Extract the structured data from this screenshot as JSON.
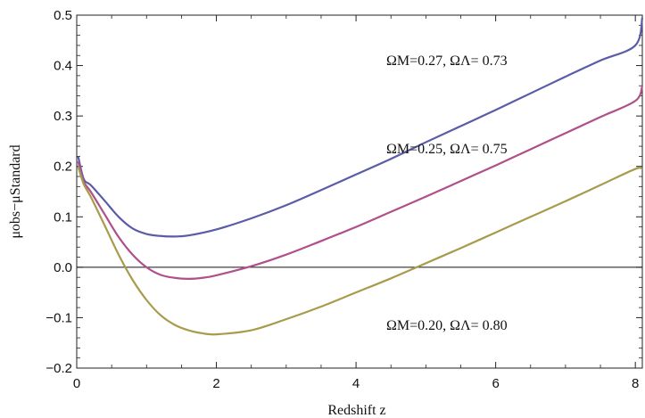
{
  "chart_data": {
    "type": "line",
    "title": "",
    "xlabel": "Redshift z",
    "ylabel": "μobs−μStandard",
    "xlim": [
      0,
      8.1
    ],
    "ylim": [
      -0.2,
      0.5
    ],
    "x_ticks": [
      {
        "value": 0,
        "label": "0"
      },
      {
        "value": 2,
        "label": "2"
      },
      {
        "value": 4,
        "label": "4"
      },
      {
        "value": 6,
        "label": "6"
      },
      {
        "value": 8,
        "label": "8"
      }
    ],
    "y_ticks": [
      {
        "value": -0.2,
        "label": "−0.2"
      },
      {
        "value": -0.1,
        "label": "−0.1"
      },
      {
        "value": 0.0,
        "label": "0.0"
      },
      {
        "value": 0.1,
        "label": "0.1"
      },
      {
        "value": 0.2,
        "label": "0.2"
      },
      {
        "value": 0.3,
        "label": "0.3"
      },
      {
        "value": 0.4,
        "label": "0.4"
      },
      {
        "value": 0.5,
        "label": "0.5"
      }
    ],
    "grid": false,
    "reference_line_y": 0,
    "series": [
      {
        "color": "#5a5ca8",
        "x": [
          0.02,
          0.1,
          0.2,
          0.4,
          0.6,
          0.8,
          1.0,
          1.2,
          1.4,
          1.6,
          2.0,
          2.5,
          3.0,
          3.5,
          4.0,
          4.5,
          5.0,
          5.5,
          6.0,
          6.5,
          7.0,
          7.5,
          8.0,
          8.1
        ],
        "y": [
          0.22,
          0.175,
          0.163,
          0.132,
          0.1,
          0.077,
          0.066,
          0.062,
          0.061,
          0.063,
          0.075,
          0.097,
          0.123,
          0.153,
          0.184,
          0.215,
          0.248,
          0.28,
          0.312,
          0.345,
          0.378,
          0.41,
          0.44,
          0.495
        ]
      },
      {
        "color": "#b0508a",
        "x": [
          0.02,
          0.1,
          0.2,
          0.4,
          0.6,
          0.8,
          1.0,
          1.2,
          1.4,
          1.6,
          1.8,
          2.0,
          2.5,
          3.0,
          3.5,
          4.0,
          4.5,
          5.0,
          5.5,
          6.0,
          6.5,
          7.0,
          7.5,
          8.0,
          8.1
        ],
        "y": [
          0.21,
          0.17,
          0.15,
          0.105,
          0.06,
          0.025,
          0.0,
          -0.015,
          -0.021,
          -0.023,
          -0.021,
          -0.016,
          0.002,
          0.025,
          0.052,
          0.08,
          0.11,
          0.14,
          0.171,
          0.202,
          0.234,
          0.266,
          0.298,
          0.33,
          0.36
        ]
      },
      {
        "color": "#a89b4c",
        "x": [
          0.02,
          0.1,
          0.2,
          0.4,
          0.6,
          0.8,
          1.0,
          1.2,
          1.4,
          1.6,
          1.8,
          2.0,
          2.5,
          3.0,
          3.5,
          4.0,
          4.5,
          5.0,
          5.5,
          6.0,
          6.5,
          7.0,
          7.5,
          8.0,
          8.1
        ],
        "y": [
          0.2,
          0.165,
          0.14,
          0.083,
          0.025,
          -0.025,
          -0.065,
          -0.095,
          -0.114,
          -0.125,
          -0.131,
          -0.133,
          -0.125,
          -0.103,
          -0.078,
          -0.05,
          -0.022,
          0.008,
          0.038,
          0.069,
          0.1,
          0.131,
          0.163,
          0.195,
          0.195
        ]
      }
    ],
    "annotations": [
      {
        "text": "ΩM=0.27, ΩΛ= 0.73",
        "x": 5.3,
        "y": 0.41
      },
      {
        "text": "ΩM=0.25, ΩΛ= 0.75",
        "x": 5.3,
        "y": 0.235
      },
      {
        "text": "ΩM=0.20, ΩΛ= 0.80",
        "x": 5.3,
        "y": -0.115
      }
    ]
  }
}
